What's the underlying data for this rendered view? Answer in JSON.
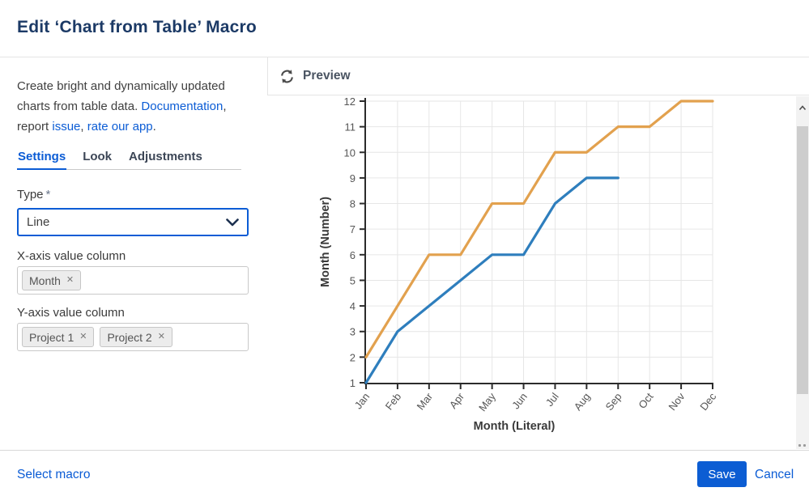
{
  "dialog": {
    "title": "Edit ‘Chart from Table’ Macro"
  },
  "intro": {
    "text": "Create bright and dynamically updated charts from table data. ",
    "link_documentation": "Documentation",
    "sep1": ", report ",
    "link_issue": "issue",
    "sep2": ", ",
    "link_rate": "rate our app",
    "end": "."
  },
  "tabs": [
    {
      "label": "Settings",
      "active": true
    },
    {
      "label": "Look",
      "active": false
    },
    {
      "label": "Adjustments",
      "active": false
    }
  ],
  "form": {
    "type_label": "Type",
    "required_mark": "*",
    "type_value": "Line",
    "xaxis_label": "X-axis value column",
    "xaxis_tags": [
      "Month"
    ],
    "yaxis_label": "Y-axis value column",
    "yaxis_tags": [
      "Project 1",
      "Project 2"
    ]
  },
  "preview": {
    "label": "Preview"
  },
  "footer": {
    "select_macro": "Select macro",
    "save": "Save",
    "cancel": "Cancel"
  },
  "icons": {
    "close": "✕"
  },
  "colors": {
    "accent": "#0b5cd5",
    "save_bg": "#0c5dd3",
    "title_color": "#1c3a66",
    "series_blue": "#2e7ebd",
    "series_orange": "#e2a14e",
    "grid": "#e6e6e6",
    "axis": "#2b2b2b"
  },
  "chart_data": {
    "type": "line",
    "x": [
      "Jan",
      "Feb",
      "Mar",
      "Apr",
      "May",
      "Jun",
      "Jul",
      "Aug",
      "Sep",
      "Oct",
      "Nov",
      "Dec"
    ],
    "series": [
      {
        "name": "Project 1",
        "color": "#2e7ebd",
        "values": [
          1,
          3,
          4,
          5,
          6,
          6,
          8,
          9,
          9
        ]
      },
      {
        "name": "Project 2",
        "color": "#e2a14e",
        "values": [
          2,
          4,
          6,
          6,
          8,
          8,
          10,
          10,
          11,
          11,
          12,
          12
        ]
      }
    ],
    "title": "",
    "xlabel": "Month (Literal)",
    "ylabel": "Month (Number)",
    "ylim": [
      1,
      12
    ],
    "yticks": [
      1,
      2,
      3,
      4,
      5,
      6,
      7,
      8,
      9,
      10,
      11,
      12
    ],
    "grid": true,
    "legend_position": "none"
  }
}
